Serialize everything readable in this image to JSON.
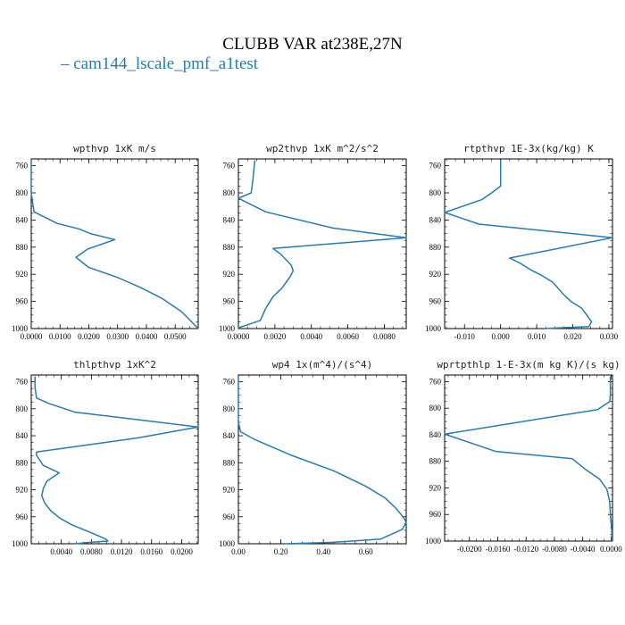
{
  "figure": {
    "title": "CLUBB VAR at238E,27N",
    "legend_entry": "– cam144_lscale_pmf_a1test",
    "line_color": "#2a7aab"
  },
  "chart_data": [
    {
      "type": "line",
      "title": "wpthvp  1xK m/s",
      "y_ticks": [
        760,
        800,
        840,
        880,
        920,
        960,
        1000
      ],
      "ylim": [
        1000,
        750
      ],
      "x_ticks": [
        "0.0000",
        "0.0100",
        "0.0200",
        "0.0300",
        "0.0400",
        "0.0500"
      ],
      "x_tick_values": [
        0.0,
        0.01,
        0.02,
        0.03,
        0.04,
        0.05
      ],
      "xlim": [
        0.0,
        0.058
      ],
      "series": [
        {
          "x": [
            0.0,
            0.0,
            0.0,
            0.0005,
            0.001,
            0.009,
            0.0165,
            0.0205,
            0.029,
            0.0195,
            0.0155,
            0.02,
            0.0302,
            0.0382,
            0.0452,
            0.0522,
            0.058
          ],
          "y": [
            752,
            780,
            800,
            815,
            828,
            845,
            853,
            860,
            869,
            883,
            895,
            910,
            925,
            940,
            955,
            975,
            1000
          ]
        }
      ]
    },
    {
      "type": "line",
      "title": "wp2thvp  1xK m^2/s^2",
      "y_ticks": [
        760,
        800,
        840,
        880,
        920,
        960,
        1000
      ],
      "ylim": [
        1000,
        750
      ],
      "x_ticks": [
        "0.0000",
        "0.0020",
        "0.0040",
        "0.0060",
        "0.0080"
      ],
      "x_tick_values": [
        0.0,
        0.002,
        0.004,
        0.006,
        0.008
      ],
      "xlim": [
        0.0,
        0.0092
      ],
      "series": [
        {
          "x": [
            0.0009,
            0.0008,
            0.0007,
            0.0,
            0.0015,
            0.0052,
            0.0092,
            0.0019,
            0.0023,
            0.0026,
            0.0029,
            0.003,
            0.0028,
            0.0024,
            0.0019,
            0.0015,
            0.0012,
            0.0,
            0.0
          ],
          "y": [
            752,
            780,
            800,
            808,
            828,
            852,
            866,
            882,
            890,
            898,
            907,
            915,
            925,
            940,
            953,
            970,
            988,
            999,
            1000
          ]
        }
      ]
    },
    {
      "type": "line",
      "title": "rtpthvp  1E-3x(kg/kg) K",
      "y_ticks": [
        760,
        800,
        840,
        880,
        920,
        960,
        1000
      ],
      "ylim": [
        1000,
        750
      ],
      "x_ticks": [
        "-0.010",
        "0.000",
        "0.010",
        "0.020",
        "0.030"
      ],
      "x_tick_values": [
        -0.01,
        0.0,
        0.01,
        0.02,
        0.03
      ],
      "xlim": [
        -0.0155,
        0.031
      ],
      "series": [
        {
          "x": [
            0.0,
            0.0,
            0.0,
            -0.0025,
            -0.0052,
            -0.0155,
            -0.006,
            0.031,
            0.0025,
            0.0055,
            0.0085,
            0.0115,
            0.0145,
            0.016,
            0.0175,
            0.0195,
            0.0225,
            0.0252,
            0.0245,
            0.012
          ],
          "y": [
            752,
            770,
            790,
            800,
            810,
            829,
            846,
            866,
            896,
            904,
            914,
            922,
            932,
            941,
            950,
            960,
            970,
            990,
            997,
            1000
          ]
        }
      ]
    },
    {
      "type": "line",
      "title": "thlpthvp  1xK^2",
      "y_ticks": [
        760,
        800,
        840,
        880,
        920,
        960,
        1000
      ],
      "ylim": [
        1000,
        750
      ],
      "x_ticks": [
        "0.0040",
        "0.0080",
        "0.0120",
        "0.0160",
        "0.0200"
      ],
      "x_tick_values": [
        0.004,
        0.008,
        0.012,
        0.016,
        0.02
      ],
      "xlim": [
        0.0,
        0.0222
      ],
      "series": [
        {
          "x": [
            0.0005,
            0.0005,
            0.0007,
            0.0023,
            0.0058,
            0.0222,
            0.0143,
            0.0007,
            0.0007,
            0.0016,
            0.0037,
            0.0021,
            0.0016,
            0.0014,
            0.0018,
            0.0026,
            0.0038,
            0.0054,
            0.0078,
            0.0099,
            0.0102,
            0.0076,
            0.0058
          ],
          "y": [
            752,
            768,
            784,
            792,
            805,
            827,
            843,
            864,
            869,
            884,
            895,
            907,
            918,
            929,
            940,
            951,
            962,
            972,
            983,
            993,
            996,
            998,
            1000
          ]
        }
      ]
    },
    {
      "type": "line",
      "title": "wp4  1x(m^4)/(s^4)",
      "y_ticks": [
        760,
        800,
        840,
        880,
        920,
        960,
        1000
      ],
      "ylim": [
        1000,
        750
      ],
      "x_ticks": [
        "0.00",
        "0.20",
        "0.40",
        "0.60"
      ],
      "x_tick_values": [
        0.0,
        0.2,
        0.4,
        0.6
      ],
      "xlim": [
        0.0,
        0.79
      ],
      "series": [
        {
          "x": [
            0.0,
            0.0,
            0.0,
            0.01,
            0.08,
            0.25,
            0.45,
            0.6,
            0.69,
            0.74,
            0.78,
            0.79,
            0.77,
            0.67,
            0.44,
            0.22,
            0.27
          ],
          "y": [
            752,
            780,
            820,
            834,
            846,
            869,
            892,
            915,
            932,
            947,
            962,
            969,
            979,
            993,
            998,
            1000,
            1000
          ]
        }
      ]
    },
    {
      "type": "line",
      "title": "wprtpthlp  1-E-3x(m kg K)/(s kg)",
      "y_ticks": [
        760,
        800,
        840,
        880,
        920,
        960,
        1000
      ],
      "ylim": [
        1000,
        750
      ],
      "x_ticks": [
        "-0.0200",
        "-0.0160",
        "-0.0120",
        "-0.0080",
        "-0.0040",
        "0.0000"
      ],
      "x_tick_values": [
        -0.02,
        -0.016,
        -0.012,
        -0.008,
        -0.004,
        0.0
      ],
      "xlim": [
        -0.0235,
        0.0002
      ],
      "series": [
        {
          "x": [
            -0.0001,
            -0.0001,
            -0.0002,
            -0.0019,
            -0.0235,
            -0.0163,
            -0.0055,
            -0.0035,
            -0.0016,
            -0.0006,
            -0.0002,
            -0.0001,
            0.0001,
            0.0001
          ],
          "y": [
            752,
            780,
            790,
            802,
            839,
            865,
            876,
            893,
            907,
            922,
            940,
            960,
            985,
            1000
          ]
        }
      ]
    }
  ]
}
